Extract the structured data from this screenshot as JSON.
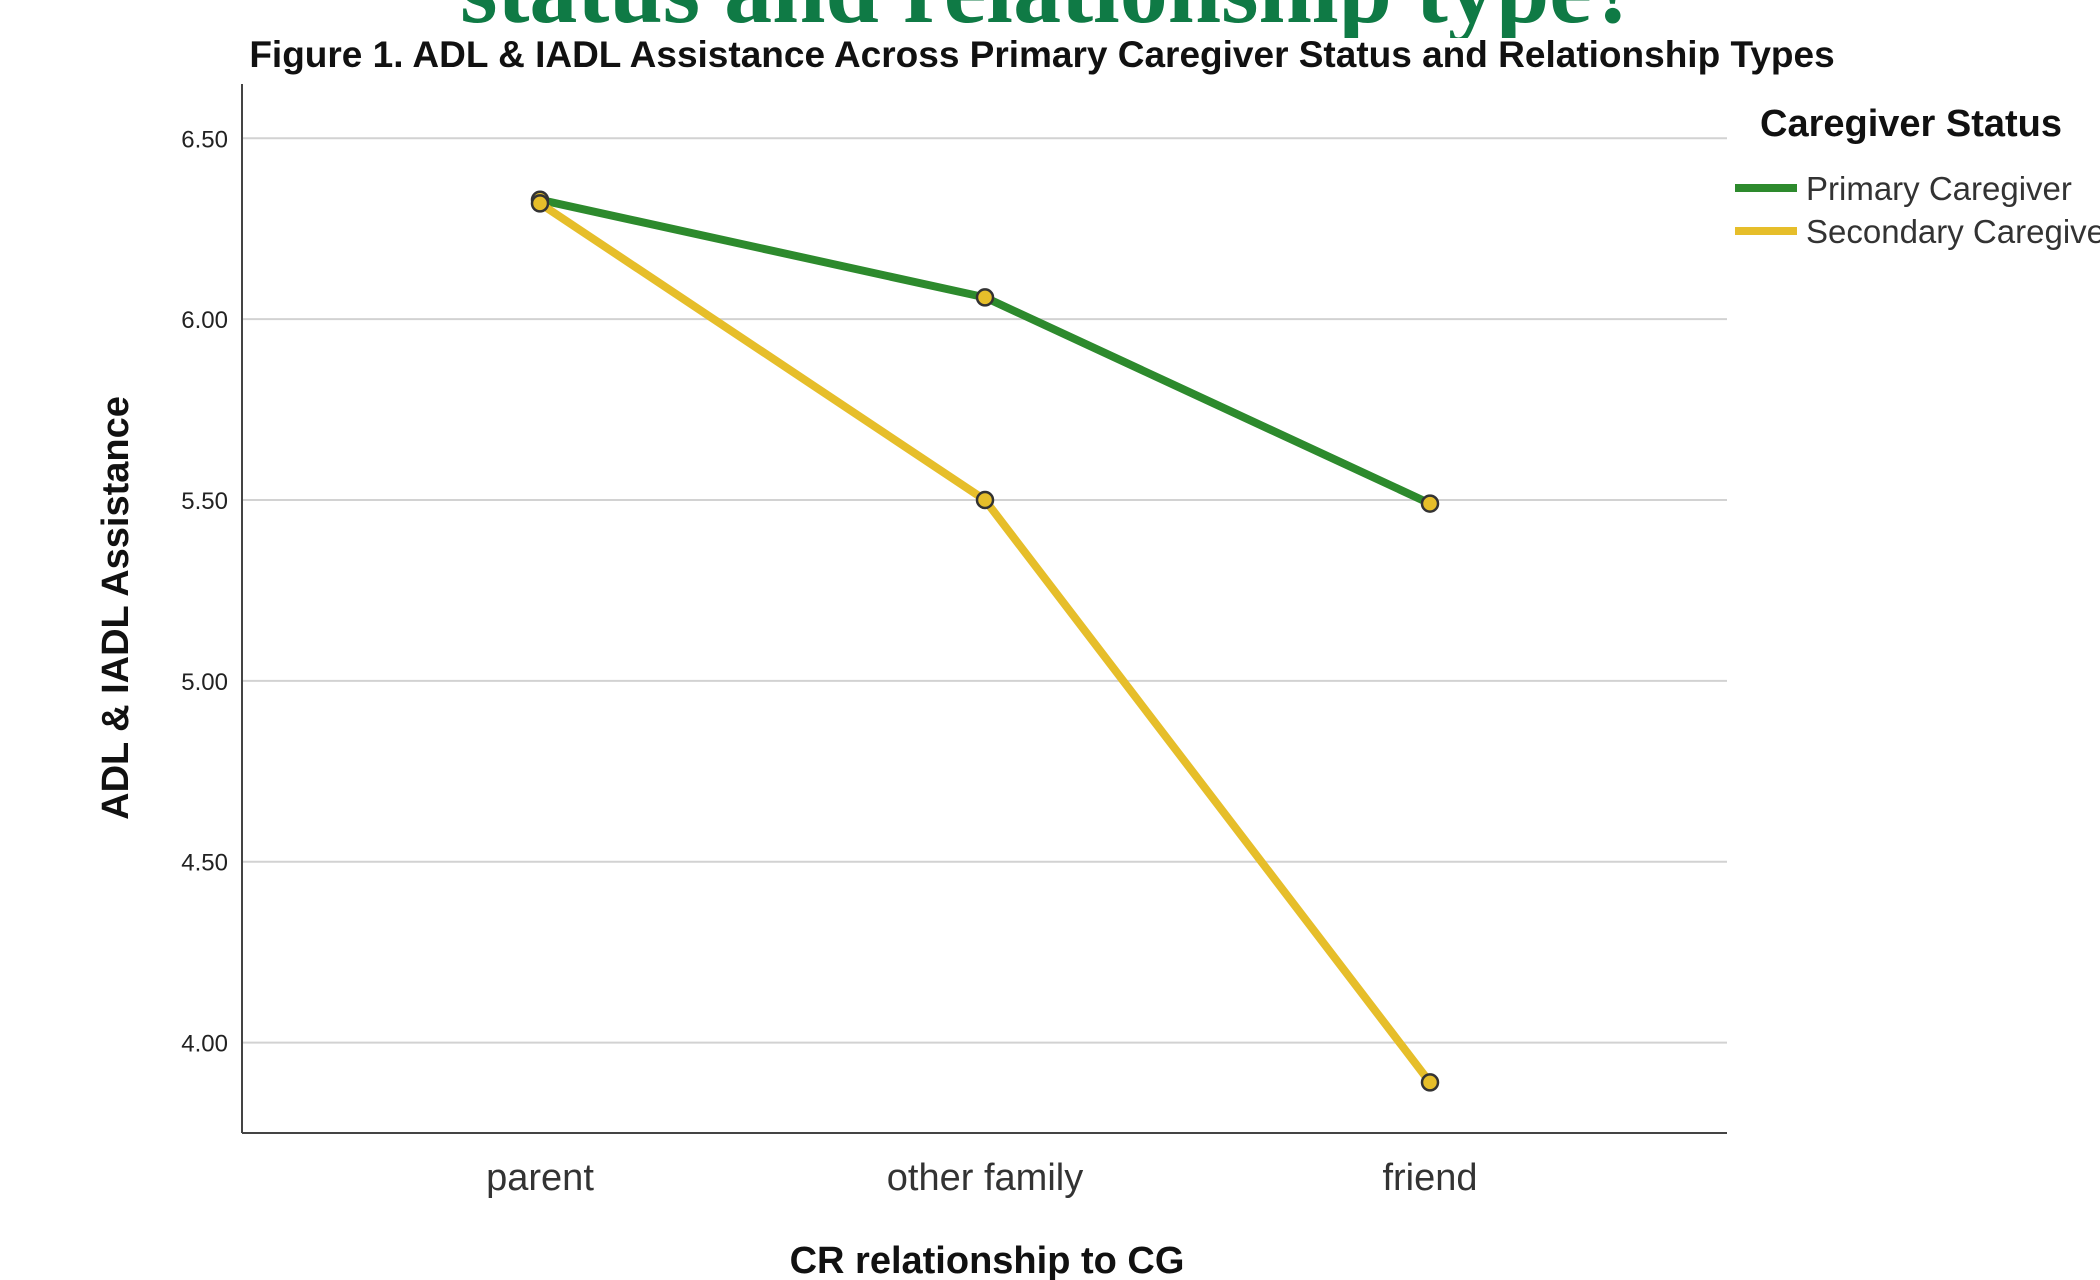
{
  "slide": {
    "heading": "status and relationship type?",
    "fragment": "re"
  },
  "chart_data": {
    "type": "line",
    "title": "Figure 1. ADL & IADL Assistance Across Primary Caregiver Status and Relationship Types",
    "xlabel": "CR relationship to CG",
    "ylabel": "ADL & IADL Assistance",
    "categories": [
      "parent",
      "other family",
      "friend"
    ],
    "ylim": [
      3.75,
      6.65
    ],
    "yticks": [
      "4.00",
      "4.50",
      "5.00",
      "5.50",
      "6.00",
      "6.50"
    ],
    "grid": true,
    "legend": {
      "title": "Caregiver Status",
      "position": "right"
    },
    "series": [
      {
        "name": "Primary Caregiver",
        "color": "#2d8a2d",
        "values": [
          6.33,
          6.06,
          5.49
        ]
      },
      {
        "name": "Secondary Caregiver",
        "color": "#e6be2a",
        "values": [
          6.32,
          5.5,
          3.89
        ]
      }
    ],
    "marker_fill": "#e6be2a"
  }
}
